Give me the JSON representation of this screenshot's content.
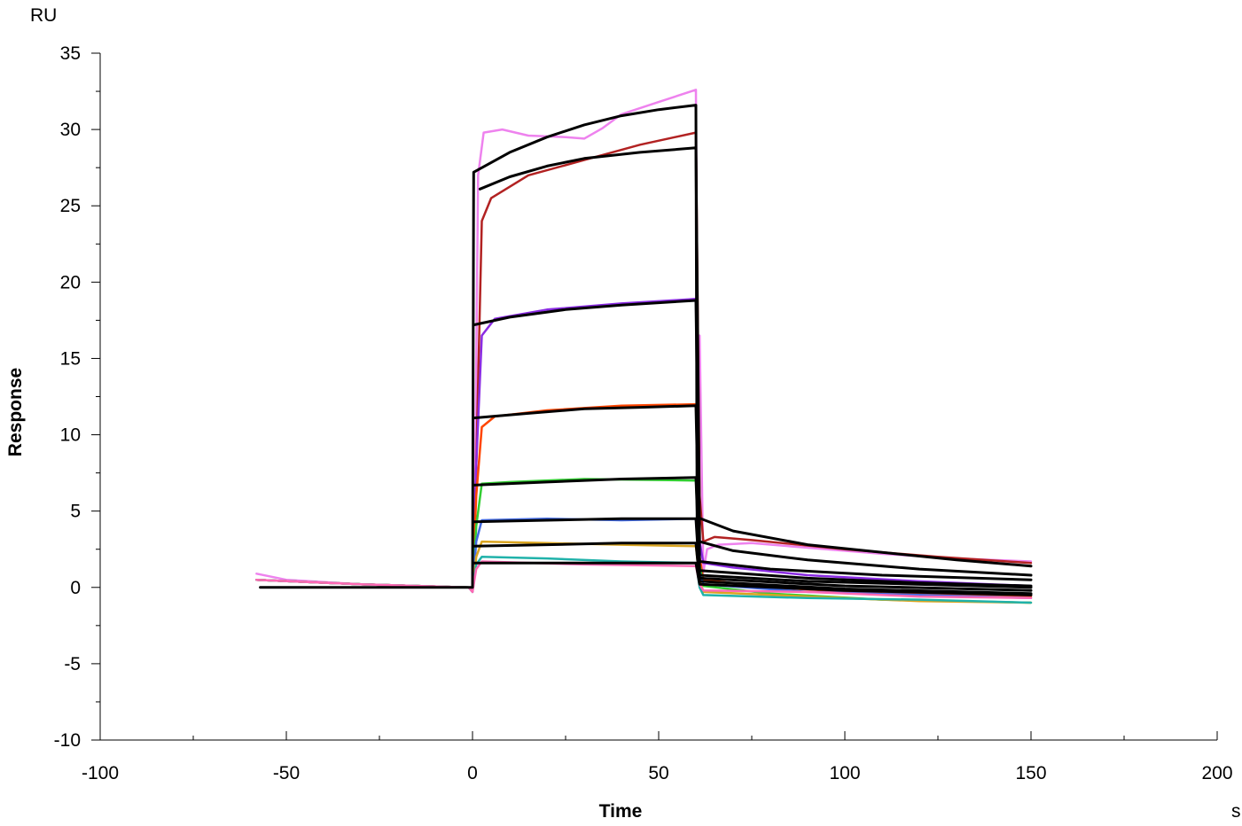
{
  "chart_data": {
    "type": "line",
    "xlabel": "Time",
    "ylabel": "Response",
    "x_unit": "s",
    "y_unit": "RU",
    "xlim": [
      -100,
      200
    ],
    "ylim": [
      -10,
      35
    ],
    "x_ticks": [
      -100,
      -50,
      0,
      50,
      100,
      150,
      200
    ],
    "y_ticks": [
      -10,
      -5,
      0,
      5,
      10,
      15,
      20,
      25,
      30,
      35
    ],
    "x_tick_labels": [
      "-100",
      "-50",
      "0",
      "50",
      "100",
      "150",
      "200"
    ],
    "y_tick_labels": [
      "-10",
      "-5",
      "0",
      "5",
      "10",
      "15",
      "20",
      "25",
      "30",
      "35"
    ],
    "grid": false,
    "legend": "none",
    "series": [
      {
        "color": "#ee82ee",
        "values": [
          [
            -58,
            0.9
          ],
          [
            -50,
            0.5
          ],
          [
            -30,
            0.2
          ],
          [
            -1,
            0
          ],
          [
            0,
            -0.3
          ],
          [
            0.6,
            4
          ],
          [
            1.5,
            27
          ],
          [
            3,
            29.8
          ],
          [
            8,
            30
          ],
          [
            15,
            29.6
          ],
          [
            25,
            29.5
          ],
          [
            30,
            29.4
          ],
          [
            35,
            30.1
          ],
          [
            40,
            31
          ],
          [
            50,
            31.8
          ],
          [
            60,
            32.6
          ],
          [
            60.5,
            10
          ],
          [
            61,
            16.5
          ],
          [
            62,
            1
          ],
          [
            63,
            2.5
          ],
          [
            66,
            2.8
          ],
          [
            75,
            2.9
          ],
          [
            90,
            2.6
          ],
          [
            110,
            2.2
          ],
          [
            130,
            1.9
          ],
          [
            150,
            1.7
          ]
        ]
      },
      {
        "color": "#b22222",
        "values": [
          [
            -58,
            0.5
          ],
          [
            -30,
            0.2
          ],
          [
            -1,
            0
          ],
          [
            0,
            -0.2
          ],
          [
            1,
            8
          ],
          [
            2.5,
            24
          ],
          [
            5,
            25.5
          ],
          [
            15,
            27
          ],
          [
            30,
            28
          ],
          [
            45,
            29
          ],
          [
            60,
            29.8
          ],
          [
            61,
            6
          ],
          [
            62,
            3
          ],
          [
            65,
            3.3
          ],
          [
            75,
            3.1
          ],
          [
            100,
            2.5
          ],
          [
            125,
            2
          ],
          [
            150,
            1.6
          ]
        ]
      },
      {
        "color": "#8a2be2",
        "values": [
          [
            -58,
            0.5
          ],
          [
            -30,
            0.2
          ],
          [
            -1,
            0
          ],
          [
            0,
            -0.2
          ],
          [
            1,
            8
          ],
          [
            2.5,
            16.5
          ],
          [
            6,
            17.6
          ],
          [
            20,
            18.2
          ],
          [
            40,
            18.6
          ],
          [
            60,
            18.9
          ],
          [
            61,
            3
          ],
          [
            62,
            1.6
          ],
          [
            70,
            1.3
          ],
          [
            90,
            0.8
          ],
          [
            120,
            0.4
          ],
          [
            150,
            0.1
          ]
        ]
      },
      {
        "color": "#ff4500",
        "values": [
          [
            -58,
            0.5
          ],
          [
            -30,
            0.2
          ],
          [
            -1,
            0
          ],
          [
            0,
            -0.2
          ],
          [
            1,
            6
          ],
          [
            2.5,
            10.5
          ],
          [
            6,
            11.2
          ],
          [
            20,
            11.6
          ],
          [
            40,
            11.9
          ],
          [
            60,
            12
          ],
          [
            61,
            2
          ],
          [
            62,
            0.5
          ],
          [
            80,
            0
          ],
          [
            110,
            -0.4
          ],
          [
            150,
            -0.6
          ]
        ]
      },
      {
        "color": "#32cd32",
        "values": [
          [
            -58,
            0.5
          ],
          [
            -30,
            0.2
          ],
          [
            -1,
            0
          ],
          [
            0,
            -0.2
          ],
          [
            1,
            4
          ],
          [
            2.5,
            6.8
          ],
          [
            10,
            6.9
          ],
          [
            30,
            7.1
          ],
          [
            60,
            7
          ],
          [
            61,
            1.5
          ],
          [
            62,
            0.1
          ],
          [
            80,
            -0.4
          ],
          [
            110,
            -0.8
          ],
          [
            150,
            -1
          ]
        ]
      },
      {
        "color": "#4169e1",
        "values": [
          [
            -58,
            0.5
          ],
          [
            -30,
            0.2
          ],
          [
            -1,
            0
          ],
          [
            0,
            -0.2
          ],
          [
            1,
            3
          ],
          [
            2.5,
            4.4
          ],
          [
            20,
            4.5
          ],
          [
            40,
            4.4
          ],
          [
            60,
            4.5
          ],
          [
            61,
            1
          ],
          [
            62,
            0.2
          ],
          [
            90,
            -0.3
          ],
          [
            150,
            -0.7
          ]
        ]
      },
      {
        "color": "#daa520",
        "values": [
          [
            -58,
            0.5
          ],
          [
            -30,
            0.2
          ],
          [
            -1,
            0
          ],
          [
            0,
            -0.2
          ],
          [
            1,
            2
          ],
          [
            2.5,
            3
          ],
          [
            20,
            2.9
          ],
          [
            40,
            2.8
          ],
          [
            60,
            2.7
          ],
          [
            61,
            0.5
          ],
          [
            62,
            -0.3
          ],
          [
            90,
            -0.6
          ],
          [
            120,
            -0.9
          ],
          [
            150,
            -1
          ]
        ]
      },
      {
        "color": "#20b2aa",
        "values": [
          [
            -58,
            0.5
          ],
          [
            -30,
            0.2
          ],
          [
            -1,
            0
          ],
          [
            0,
            -0.3
          ],
          [
            1,
            1.5
          ],
          [
            2.5,
            2
          ],
          [
            20,
            1.9
          ],
          [
            40,
            1.7
          ],
          [
            60,
            1.6
          ],
          [
            61,
            0
          ],
          [
            62,
            -0.5
          ],
          [
            90,
            -0.7
          ],
          [
            120,
            -0.8
          ],
          [
            150,
            -1
          ]
        ]
      },
      {
        "color": "#ff69b4",
        "values": [
          [
            -58,
            0.5
          ],
          [
            -30,
            0.2
          ],
          [
            -1,
            0
          ],
          [
            0,
            -0.3
          ],
          [
            1,
            1.2
          ],
          [
            2.5,
            1.7
          ],
          [
            30,
            1.5
          ],
          [
            60,
            1.4
          ],
          [
            61,
            0.2
          ],
          [
            62,
            -0.2
          ],
          [
            90,
            -0.3
          ],
          [
            120,
            -0.6
          ],
          [
            150,
            -0.7
          ]
        ]
      },
      {
        "color": "#000000",
        "fit": true,
        "values": [
          [
            -57,
            0
          ],
          [
            0,
            0
          ],
          [
            0.3,
            27.2
          ],
          [
            10,
            28.5
          ],
          [
            20,
            29.5
          ],
          [
            30,
            30.3
          ],
          [
            40,
            30.9
          ],
          [
            50,
            31.3
          ],
          [
            60,
            31.6
          ],
          [
            60.3,
            4.6
          ],
          [
            70,
            3.7
          ],
          [
            90,
            2.8
          ],
          [
            110,
            2.3
          ],
          [
            130,
            1.8
          ],
          [
            150,
            1.4
          ]
        ]
      },
      {
        "color": "#000000",
        "fit": true,
        "values": [
          [
            2,
            26.1
          ],
          [
            10,
            26.9
          ],
          [
            20,
            27.6
          ],
          [
            30,
            28.1
          ],
          [
            45,
            28.5
          ],
          [
            60,
            28.8
          ],
          [
            61,
            3
          ],
          [
            70,
            2.4
          ],
          [
            90,
            1.8
          ],
          [
            120,
            1.2
          ],
          [
            150,
            0.8
          ]
        ]
      },
      {
        "color": "#000000",
        "fit": true,
        "values": [
          [
            0.3,
            17.2
          ],
          [
            10,
            17.7
          ],
          [
            25,
            18.2
          ],
          [
            40,
            18.5
          ],
          [
            60,
            18.8
          ],
          [
            61,
            1.7
          ],
          [
            80,
            1.2
          ],
          [
            110,
            0.8
          ],
          [
            150,
            0.5
          ]
        ]
      },
      {
        "color": "#000000",
        "fit": true,
        "values": [
          [
            0.3,
            11.1
          ],
          [
            15,
            11.4
          ],
          [
            30,
            11.7
          ],
          [
            45,
            11.8
          ],
          [
            60,
            11.9
          ],
          [
            61,
            1.1
          ],
          [
            90,
            0.6
          ],
          [
            120,
            0.3
          ],
          [
            150,
            0.1
          ]
        ]
      },
      {
        "color": "#000000",
        "fit": true,
        "values": [
          [
            0.3,
            6.7
          ],
          [
            20,
            6.9
          ],
          [
            40,
            7.1
          ],
          [
            60,
            7.2
          ],
          [
            61,
            0.8
          ],
          [
            90,
            0.4
          ],
          [
            150,
            0
          ]
        ]
      },
      {
        "color": "#000000",
        "fit": true,
        "values": [
          [
            0.3,
            4.3
          ],
          [
            20,
            4.4
          ],
          [
            40,
            4.5
          ],
          [
            60,
            4.5
          ],
          [
            61,
            0.6
          ],
          [
            100,
            0.1
          ],
          [
            150,
            -0.2
          ]
        ]
      },
      {
        "color": "#000000",
        "fit": true,
        "values": [
          [
            0.3,
            2.7
          ],
          [
            20,
            2.8
          ],
          [
            40,
            2.9
          ],
          [
            60,
            2.9
          ],
          [
            61,
            0.4
          ],
          [
            100,
            -0.1
          ],
          [
            150,
            -0.4
          ]
        ]
      },
      {
        "color": "#000000",
        "fit": true,
        "values": [
          [
            0.3,
            1.6
          ],
          [
            30,
            1.6
          ],
          [
            60,
            1.6
          ],
          [
            61,
            0.2
          ],
          [
            100,
            -0.2
          ],
          [
            150,
            -0.5
          ]
        ]
      }
    ]
  }
}
